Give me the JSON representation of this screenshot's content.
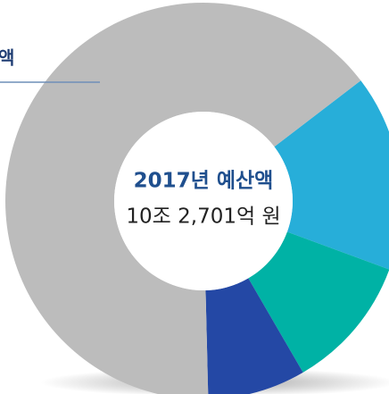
{
  "chart_data": {
    "type": "donut",
    "title": "2017년 예산액",
    "subtitle": "10조 2,701억 원",
    "legend_fragment": "액",
    "values": [
      16,
      11,
      8,
      65
    ],
    "colors": [
      "#27aed9",
      "#00b2a5",
      "#2448a5",
      "#bcbcbc"
    ]
  }
}
